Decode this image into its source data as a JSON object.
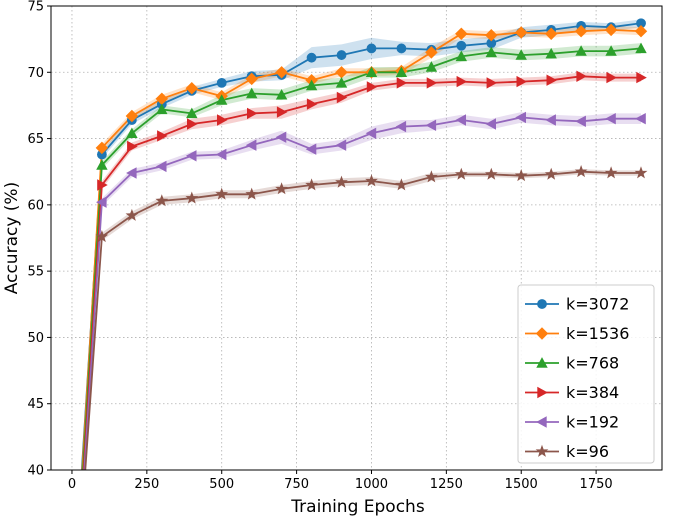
{
  "chart_data": {
    "type": "line",
    "title": "",
    "xlabel": "Training Epochs",
    "ylabel": "Accuracy (%)",
    "xlim": [
      -70,
      1970
    ],
    "ylim": [
      40,
      75
    ],
    "xticks": [
      0,
      250,
      500,
      750,
      1000,
      1250,
      1500,
      1750
    ],
    "yticks": [
      40,
      45,
      50,
      55,
      60,
      65,
      70,
      75
    ],
    "grid": true,
    "legend_position": "lower-right",
    "x": [
      100,
      200,
      300,
      400,
      500,
      600,
      700,
      800,
      900,
      1000,
      1100,
      1200,
      1300,
      1400,
      1500,
      1600,
      1700,
      1800,
      1900
    ],
    "series": [
      {
        "name": "k=3072",
        "color": "#1f77b4",
        "marker": "circle",
        "values": [
          63.8,
          66.4,
          67.6,
          68.6,
          69.2,
          69.7,
          69.8,
          71.1,
          71.3,
          71.8,
          71.8,
          71.7,
          72.0,
          72.2,
          73.0,
          73.2,
          73.5,
          73.4,
          73.7
        ],
        "spread": [
          0.3,
          0.3,
          0.3,
          0.3,
          0.3,
          0.4,
          0.4,
          0.8,
          0.8,
          0.8,
          0.5,
          0.5,
          0.5,
          0.5,
          0.4,
          0.4,
          0.3,
          0.3,
          0.3
        ]
      },
      {
        "name": "k=1536",
        "color": "#ff7f0e",
        "marker": "diamond",
        "values": [
          64.3,
          66.7,
          68.0,
          68.8,
          68.2,
          69.5,
          70.0,
          69.4,
          70.0,
          70.0,
          70.1,
          71.5,
          72.9,
          72.8,
          73.0,
          72.9,
          73.1,
          73.2,
          73.1
        ],
        "spread": [
          0.3,
          0.3,
          0.3,
          0.3,
          0.3,
          0.3,
          0.3,
          0.3,
          0.3,
          0.3,
          0.3,
          0.4,
          0.3,
          0.3,
          0.3,
          0.3,
          0.3,
          0.3,
          0.3
        ]
      },
      {
        "name": "k=768",
        "color": "#2ca02c",
        "marker": "triangle-up",
        "values": [
          63.0,
          65.4,
          67.2,
          66.9,
          67.9,
          68.4,
          68.3,
          69.0,
          69.2,
          70.0,
          70.0,
          70.4,
          71.2,
          71.5,
          71.3,
          71.4,
          71.6,
          71.6,
          71.8
        ],
        "spread": [
          0.3,
          0.3,
          0.3,
          0.3,
          0.4,
          0.4,
          0.4,
          0.4,
          0.4,
          0.4,
          0.4,
          0.4,
          0.4,
          0.4,
          0.4,
          0.4,
          0.4,
          0.4,
          0.4
        ]
      },
      {
        "name": "k=384",
        "color": "#d62728",
        "marker": "triangle-right",
        "values": [
          61.5,
          64.4,
          65.2,
          66.1,
          66.4,
          66.9,
          67.0,
          67.6,
          68.1,
          68.9,
          69.2,
          69.2,
          69.3,
          69.2,
          69.3,
          69.4,
          69.7,
          69.6,
          69.6
        ],
        "spread": [
          0.3,
          0.3,
          0.3,
          0.4,
          0.4,
          0.4,
          0.5,
          0.4,
          0.4,
          0.3,
          0.3,
          0.3,
          0.3,
          0.3,
          0.3,
          0.3,
          0.3,
          0.3,
          0.3
        ]
      },
      {
        "name": "k=192",
        "color": "#9467bd",
        "marker": "triangle-left",
        "values": [
          60.2,
          62.4,
          62.9,
          63.7,
          63.8,
          64.5,
          65.1,
          64.2,
          64.5,
          65.4,
          65.9,
          66.0,
          66.4,
          66.1,
          66.6,
          66.4,
          66.3,
          66.5,
          66.5
        ],
        "spread": [
          0.3,
          0.3,
          0.3,
          0.3,
          0.3,
          0.4,
          0.5,
          0.4,
          0.4,
          0.5,
          0.5,
          0.4,
          0.4,
          0.4,
          0.4,
          0.4,
          0.4,
          0.4,
          0.4
        ]
      },
      {
        "name": "k=96",
        "color": "#8c564b",
        "marker": "star",
        "values": [
          57.6,
          59.2,
          60.3,
          60.5,
          60.8,
          60.8,
          61.2,
          61.5,
          61.7,
          61.8,
          61.5,
          62.1,
          62.3,
          62.3,
          62.2,
          62.3,
          62.5,
          62.4,
          62.4
        ],
        "spread": [
          0.3,
          0.3,
          0.3,
          0.3,
          0.3,
          0.3,
          0.3,
          0.3,
          0.3,
          0.3,
          0.3,
          0.3,
          0.2,
          0.2,
          0.2,
          0.2,
          0.2,
          0.2,
          0.2
        ]
      }
    ]
  }
}
